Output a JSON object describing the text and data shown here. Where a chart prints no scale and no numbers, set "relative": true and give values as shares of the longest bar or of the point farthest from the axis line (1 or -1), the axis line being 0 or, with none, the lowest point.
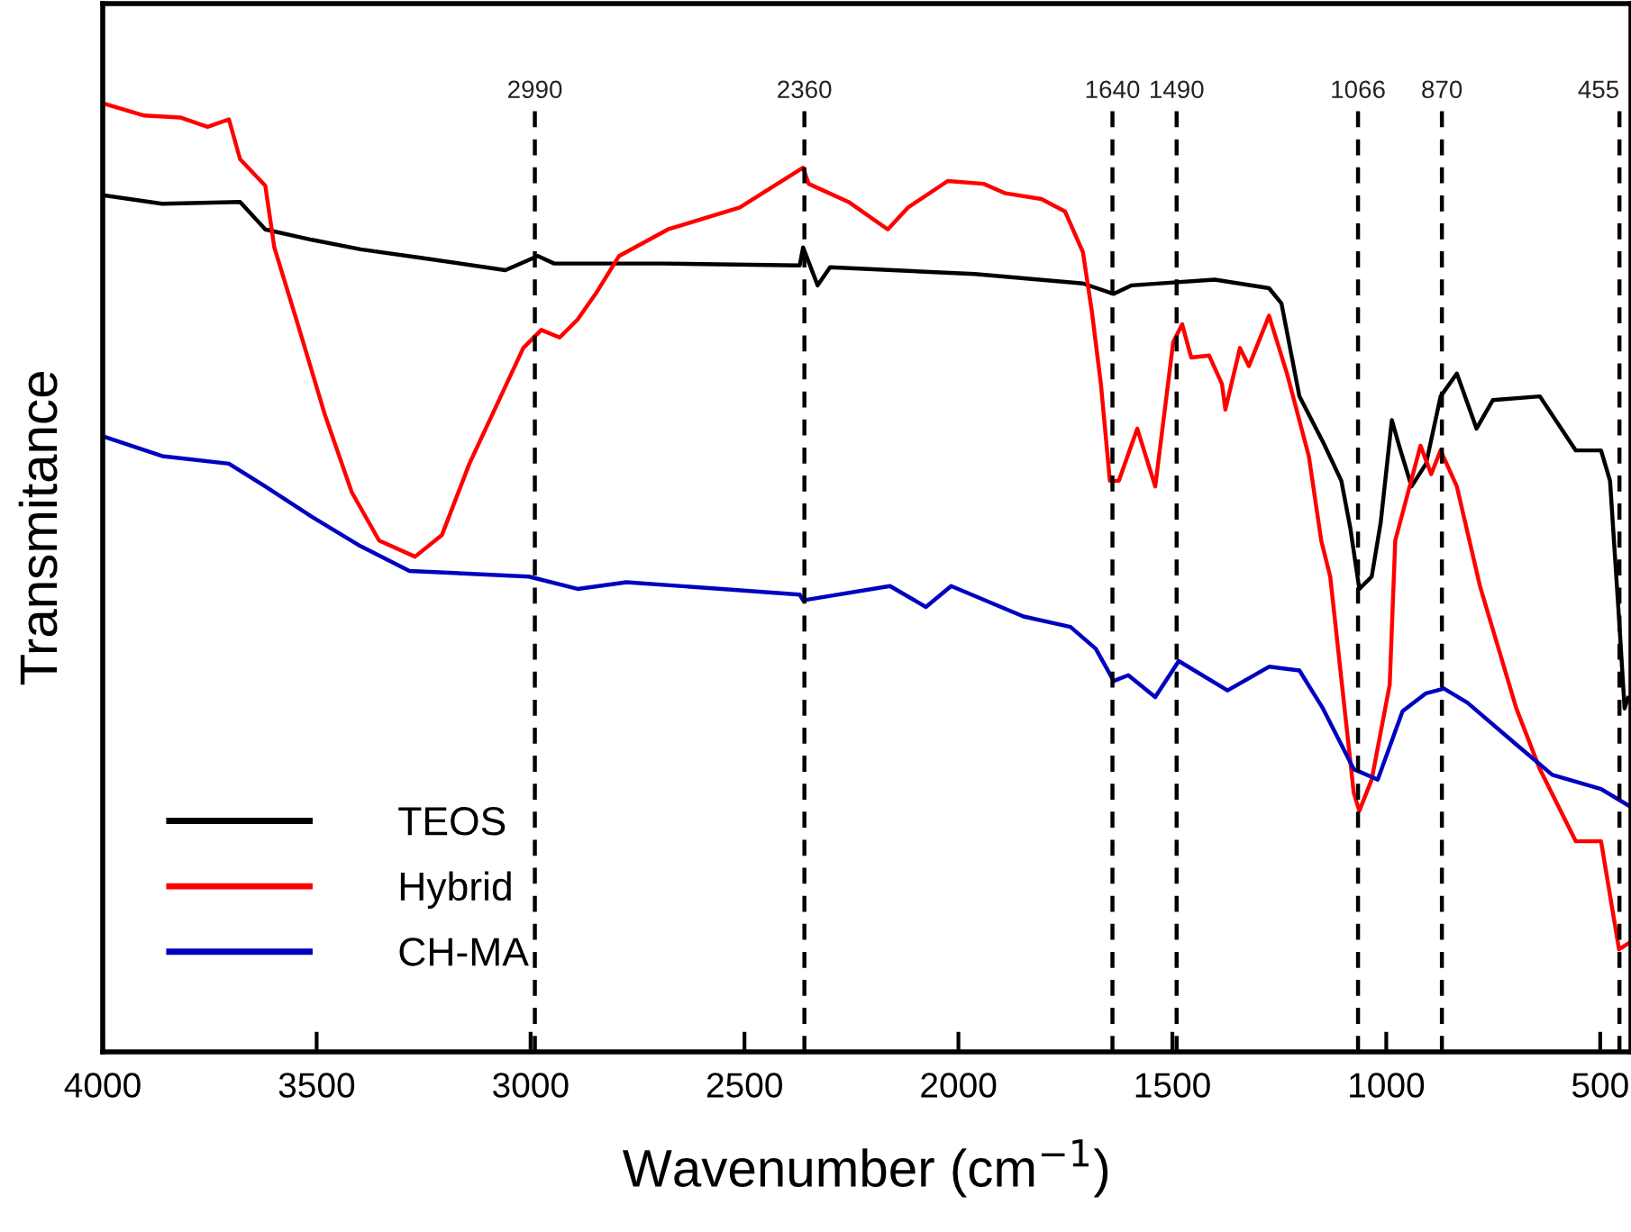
{
  "chart_data": {
    "type": "line",
    "relative": true,
    "xlabel": "Wavenumber (cm$^{−1}$)",
    "ylabel": "Transmitance",
    "xlim": [
      4000,
      428
    ],
    "xticks": [
      4000,
      3500,
      3000,
      2500,
      2000,
      1500,
      1000,
      500
    ],
    "legend": "bottom left",
    "grid": false,
    "line_style": "solid",
    "marker": "none",
    "series": [
      {
        "name": "TEOS",
        "color": "#000000",
        "x": [
          4000,
          3861,
          3679,
          3620,
          3511,
          3397,
          3257,
          3059,
          2983,
          2945,
          2692,
          2371,
          2363,
          2329,
          2300,
          1962,
          1709,
          1637,
          1595,
          1401,
          1274,
          1245,
          1203,
          1148,
          1105,
          1084,
          1063,
          1034,
          1013,
          987,
          970,
          941,
          907,
          873,
          835,
          789,
          751,
          641,
          557,
          498,
          477,
          456,
          443,
          435
        ],
        "values": [
          0.903,
          0.894,
          0.896,
          0.867,
          0.856,
          0.846,
          0.837,
          0.824,
          0.839,
          0.831,
          0.831,
          0.829,
          0.848,
          0.808,
          0.827,
          0.82,
          0.81,
          0.799,
          0.808,
          0.814,
          0.805,
          0.789,
          0.691,
          0.643,
          0.602,
          0.552,
          0.488,
          0.501,
          0.558,
          0.666,
          0.639,
          0.596,
          0.62,
          0.691,
          0.715,
          0.657,
          0.687,
          0.691,
          0.634,
          0.634,
          0.602,
          0.457,
          0.362,
          0.373
        ]
      },
      {
        "name": "Hybrid",
        "color": "#ff0000",
        "x": [
          4000,
          3903,
          3819,
          3755,
          3705,
          3679,
          3620,
          3599,
          3544,
          3481,
          3418,
          3354,
          3270,
          3207,
          3143,
          3080,
          3017,
          2975,
          2932,
          2890,
          2848,
          2793,
          2679,
          2511,
          2363,
          2350,
          2257,
          2165,
          2118,
          2025,
          1941,
          1890,
          1806,
          1751,
          1709,
          1688,
          1667,
          1646,
          1625,
          1582,
          1540,
          1498,
          1477,
          1456,
          1414,
          1384,
          1376,
          1342,
          1321,
          1274,
          1232,
          1181,
          1152,
          1131,
          1076,
          1063,
          1034,
          992,
          979,
          920,
          895,
          873,
          835,
          781,
          696,
          641,
          557,
          498,
          456,
          435
        ],
        "values": [
          1.0,
          0.987,
          0.985,
          0.975,
          0.983,
          0.941,
          0.913,
          0.848,
          0.767,
          0.672,
          0.59,
          0.539,
          0.522,
          0.545,
          0.62,
          0.681,
          0.742,
          0.761,
          0.753,
          0.772,
          0.799,
          0.839,
          0.867,
          0.89,
          0.932,
          0.915,
          0.896,
          0.867,
          0.89,
          0.918,
          0.915,
          0.905,
          0.899,
          0.886,
          0.843,
          0.78,
          0.704,
          0.602,
          0.602,
          0.657,
          0.596,
          0.748,
          0.767,
          0.732,
          0.734,
          0.704,
          0.677,
          0.742,
          0.723,
          0.776,
          0.715,
          0.628,
          0.539,
          0.501,
          0.273,
          0.254,
          0.287,
          0.387,
          0.539,
          0.639,
          0.609,
          0.634,
          0.596,
          0.491,
          0.362,
          0.298,
          0.222,
          0.222,
          0.108,
          0.114
        ]
      },
      {
        "name": "CH-MA",
        "color": "#0000c0",
        "x": [
          4000,
          3861,
          3705,
          3620,
          3511,
          3397,
          3283,
          3004,
          2890,
          2776,
          2553,
          2371,
          2363,
          2160,
          2076,
          2017,
          1848,
          1738,
          1679,
          1637,
          1603,
          1540,
          1485,
          1371,
          1274,
          1203,
          1148,
          1076,
          1020,
          962,
          907,
          865,
          810,
          696,
          612,
          498,
          435
        ],
        "values": [
          0.649,
          0.628,
          0.62,
          0.596,
          0.564,
          0.533,
          0.507,
          0.501,
          0.488,
          0.495,
          0.488,
          0.482,
          0.476,
          0.491,
          0.469,
          0.491,
          0.459,
          0.448,
          0.425,
          0.391,
          0.397,
          0.374,
          0.412,
          0.381,
          0.406,
          0.402,
          0.362,
          0.298,
          0.287,
          0.359,
          0.378,
          0.383,
          0.368,
          0.324,
          0.292,
          0.277,
          0.26
        ]
      }
    ],
    "ref_lines": [
      {
        "axis": "x",
        "value": 2990,
        "label": "2990",
        "color": "#000000",
        "line_style": "dashed"
      },
      {
        "axis": "x",
        "value": 2360,
        "label": "2360",
        "color": "#000000",
        "line_style": "dashed"
      },
      {
        "axis": "x",
        "value": 1640,
        "label": "1640",
        "color": "#000000",
        "line_style": "dashed"
      },
      {
        "axis": "x",
        "value": 1490,
        "label": "1490",
        "color": "#000000",
        "line_style": "dashed"
      },
      {
        "axis": "x",
        "value": 1066,
        "label": "1066",
        "color": "#000000",
        "line_style": "dashed"
      },
      {
        "axis": "x",
        "value": 870,
        "label": "870",
        "color": "#000000",
        "line_style": "dashed"
      },
      {
        "axis": "x",
        "value": 455,
        "label": "455",
        "color": "#000000",
        "line_style": "dashed"
      }
    ]
  }
}
